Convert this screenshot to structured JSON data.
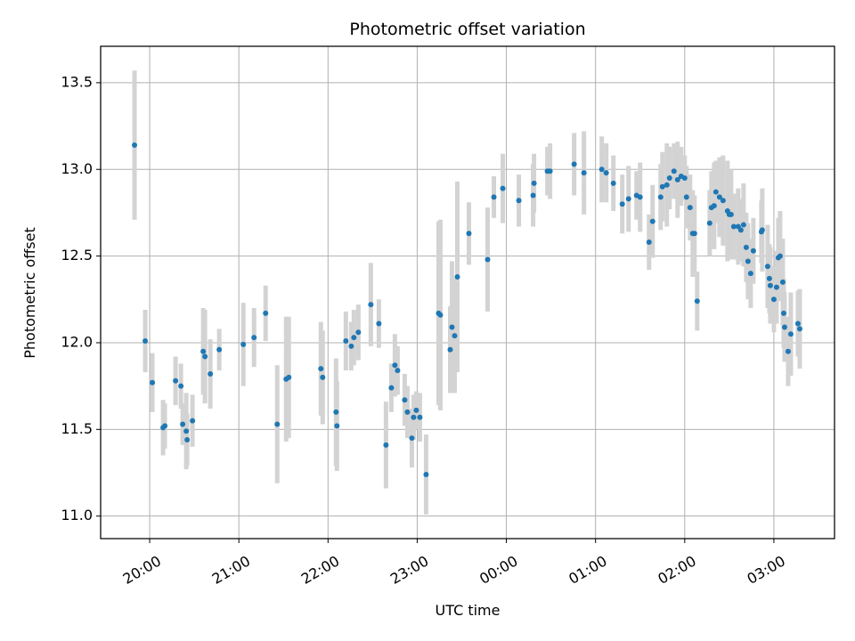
{
  "chart_data": {
    "type": "scatter",
    "title": "Photometric offset variation",
    "xlabel": "UTC time",
    "ylabel": "Photometric offset",
    "x_tick_labels": [
      "20:00",
      "21:00",
      "22:00",
      "23:00",
      "00:00",
      "01:00",
      "02:00",
      "03:00"
    ],
    "y_tick_labels": [
      "11.0",
      "11.5",
      "12.0",
      "12.5",
      "13.0",
      "13.5"
    ],
    "x_unit": "UTC time (hours since 20:00)",
    "xlim": [
      -0.55,
      7.68
    ],
    "ylim": [
      10.87,
      13.71
    ],
    "grid": true,
    "colors": {
      "point": "#1f77b4",
      "errorbar": "#d3d3d3",
      "grid": "#b0b0b0"
    },
    "points": [
      [
        -0.17,
        13.14,
        0.43
      ],
      [
        -0.05,
        12.01,
        0.18
      ],
      [
        0.03,
        11.77,
        0.17
      ],
      [
        0.15,
        11.51,
        0.16
      ],
      [
        0.17,
        11.52,
        0.13
      ],
      [
        0.29,
        11.78,
        0.14
      ],
      [
        0.35,
        11.75,
        0.13
      ],
      [
        0.37,
        11.53,
        0.12
      ],
      [
        0.41,
        11.49,
        0.22
      ],
      [
        0.42,
        11.44,
        0.15
      ],
      [
        0.48,
        11.55,
        0.15
      ],
      [
        0.6,
        11.95,
        0.25
      ],
      [
        0.62,
        11.92,
        0.27
      ],
      [
        0.68,
        11.82,
        0.2
      ],
      [
        0.78,
        11.96,
        0.12
      ],
      [
        1.05,
        11.99,
        0.24
      ],
      [
        1.17,
        12.03,
        0.17
      ],
      [
        1.3,
        12.17,
        0.16
      ],
      [
        1.43,
        11.53,
        0.34
      ],
      [
        1.53,
        11.79,
        0.36
      ],
      [
        1.56,
        11.8,
        0.35
      ],
      [
        1.92,
        11.85,
        0.27
      ],
      [
        1.94,
        11.8,
        0.27
      ],
      [
        2.09,
        11.6,
        0.31
      ],
      [
        2.1,
        11.52,
        0.26
      ],
      [
        2.2,
        12.01,
        0.17
      ],
      [
        2.26,
        11.98,
        0.14
      ],
      [
        2.29,
        12.03,
        0.16
      ],
      [
        2.34,
        12.06,
        0.16
      ],
      [
        2.48,
        12.22,
        0.24
      ],
      [
        2.57,
        12.11,
        0.14
      ],
      [
        2.65,
        11.41,
        0.25
      ],
      [
        2.71,
        11.74,
        0.14
      ],
      [
        2.75,
        11.87,
        0.18
      ],
      [
        2.78,
        11.84,
        0.14
      ],
      [
        2.86,
        11.67,
        0.15
      ],
      [
        2.89,
        11.6,
        0.15
      ],
      [
        2.94,
        11.45,
        0.17
      ],
      [
        2.96,
        11.57,
        0.13
      ],
      [
        2.99,
        11.61,
        0.11
      ],
      [
        3.03,
        11.57,
        0.14
      ],
      [
        3.1,
        11.24,
        0.23
      ],
      [
        3.24,
        12.17,
        0.53
      ],
      [
        3.26,
        12.16,
        0.55
      ],
      [
        3.37,
        11.96,
        0.25
      ],
      [
        3.39,
        12.09,
        0.38
      ],
      [
        3.42,
        12.04,
        0.33
      ],
      [
        3.45,
        12.38,
        0.55
      ],
      [
        3.58,
        12.63,
        0.18
      ],
      [
        3.79,
        12.48,
        0.3
      ],
      [
        3.86,
        12.84,
        0.12
      ],
      [
        3.96,
        12.89,
        0.2
      ],
      [
        4.14,
        12.82,
        0.15
      ],
      [
        4.3,
        12.85,
        0.18
      ],
      [
        4.31,
        12.92,
        0.17
      ],
      [
        4.46,
        12.99,
        0.14
      ],
      [
        4.49,
        12.99,
        0.16
      ],
      [
        4.76,
        13.03,
        0.18
      ],
      [
        4.87,
        12.98,
        0.24
      ],
      [
        5.07,
        13.0,
        0.19
      ],
      [
        5.12,
        12.98,
        0.17
      ],
      [
        5.2,
        12.92,
        0.16
      ],
      [
        5.3,
        12.8,
        0.17
      ],
      [
        5.37,
        12.83,
        0.19
      ],
      [
        5.46,
        12.85,
        0.14
      ],
      [
        5.5,
        12.84,
        0.2
      ],
      [
        5.6,
        12.58,
        0.16
      ],
      [
        5.64,
        12.7,
        0.21
      ],
      [
        5.73,
        12.84,
        0.19
      ],
      [
        5.75,
        12.9,
        0.2
      ],
      [
        5.8,
        12.91,
        0.24
      ],
      [
        5.83,
        12.95,
        0.18
      ],
      [
        5.88,
        12.99,
        0.16
      ],
      [
        5.92,
        12.94,
        0.22
      ],
      [
        5.96,
        12.96,
        0.17
      ],
      [
        6.0,
        12.95,
        0.13
      ],
      [
        6.02,
        12.84,
        0.18
      ],
      [
        6.06,
        12.78,
        0.19
      ],
      [
        6.09,
        12.63,
        0.25
      ],
      [
        6.11,
        12.63,
        0.22
      ],
      [
        6.14,
        12.24,
        0.17
      ],
      [
        6.28,
        12.69,
        0.19
      ],
      [
        6.3,
        12.78,
        0.21
      ],
      [
        6.33,
        12.79,
        0.25
      ],
      [
        6.35,
        12.87,
        0.18
      ],
      [
        6.39,
        12.84,
        0.23
      ],
      [
        6.43,
        12.82,
        0.26
      ],
      [
        6.48,
        12.76,
        0.29
      ],
      [
        6.5,
        12.74,
        0.23
      ],
      [
        6.52,
        12.74,
        0.26
      ],
      [
        6.55,
        12.67,
        0.19
      ],
      [
        6.6,
        12.67,
        0.22
      ],
      [
        6.63,
        12.65,
        0.18
      ],
      [
        6.66,
        12.68,
        0.24
      ],
      [
        6.69,
        12.55,
        0.2
      ],
      [
        6.71,
        12.47,
        0.22
      ],
      [
        6.74,
        12.4,
        0.2
      ],
      [
        6.77,
        12.53,
        0.19
      ],
      [
        6.86,
        12.64,
        0.18
      ],
      [
        6.87,
        12.65,
        0.24
      ],
      [
        6.93,
        12.44,
        0.24
      ],
      [
        6.95,
        12.37,
        0.2
      ],
      [
        6.96,
        12.33,
        0.22
      ],
      [
        7.0,
        12.25,
        0.19
      ],
      [
        7.03,
        12.32,
        0.21
      ],
      [
        7.05,
        12.49,
        0.23
      ],
      [
        7.07,
        12.5,
        0.26
      ],
      [
        7.1,
        12.35,
        0.25
      ],
      [
        7.11,
        12.17,
        0.2
      ],
      [
        7.12,
        12.09,
        0.2
      ],
      [
        7.16,
        11.95,
        0.2
      ],
      [
        7.19,
        12.05,
        0.24
      ],
      [
        7.27,
        12.11,
        0.19
      ],
      [
        7.29,
        12.08,
        0.23
      ]
    ]
  }
}
